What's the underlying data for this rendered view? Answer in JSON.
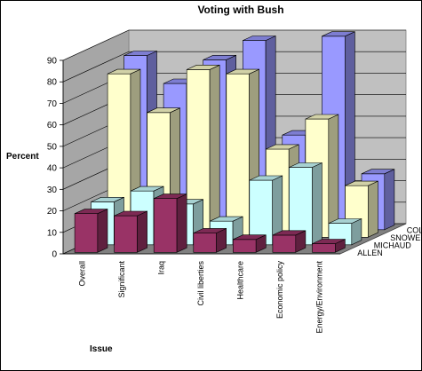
{
  "chart_data": {
    "type": "bar",
    "subtype": "3d-column",
    "title": "Voting with Bush",
    "xlabel": "Issue",
    "ylabel": "Percent",
    "ylim": [
      0,
      90
    ],
    "yticks": [
      0,
      10,
      20,
      30,
      40,
      50,
      60,
      70,
      80,
      90
    ],
    "grid": true,
    "categories": [
      "Overall",
      "Significant",
      "Iraq",
      "Civil liberties",
      "Healthcare",
      "Economic policy",
      "Energy/Environment"
    ],
    "series": [
      {
        "name": "ALLEN",
        "color": "#993366",
        "values": [
          18,
          17,
          25,
          9,
          6,
          8,
          4
        ]
      },
      {
        "name": "MICHAUD",
        "color": "#ccffff",
        "values": [
          20,
          25,
          19,
          11,
          30,
          36,
          10
        ]
      },
      {
        "name": "SNOWE",
        "color": "#ffffcc",
        "values": [
          76,
          58,
          78,
          76,
          41,
          55,
          24
        ]
      },
      {
        "name": "COLLINS",
        "color": "#9999ff",
        "values": [
          81,
          68,
          79,
          88,
          44,
          90,
          26
        ]
      }
    ]
  }
}
